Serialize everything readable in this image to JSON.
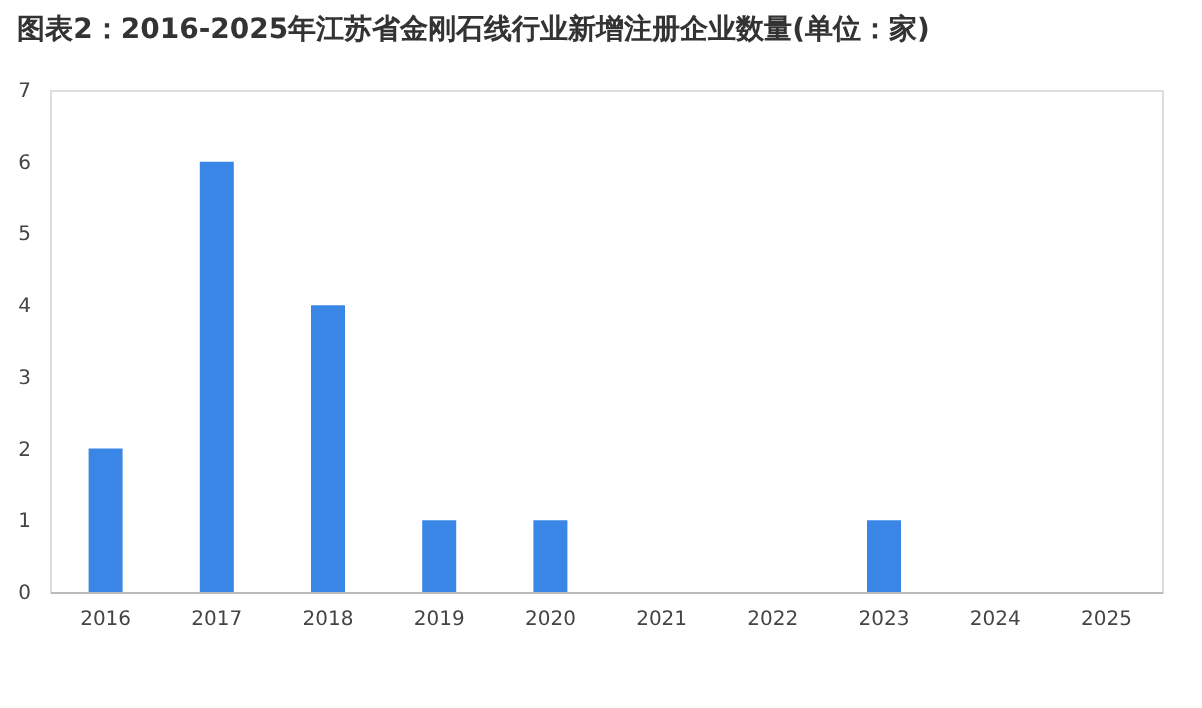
{
  "chart_data": {
    "type": "bar",
    "title": "图表2：2016-2025年江苏省金刚石线行业新增注册企业数量(单位：家)",
    "categories": [
      "2016",
      "2017",
      "2018",
      "2019",
      "2020",
      "2021",
      "2022",
      "2023",
      "2024",
      "2025"
    ],
    "values": [
      2,
      6,
      4,
      1,
      1,
      0,
      0,
      1,
      0,
      0
    ],
    "color": "#3a86e6",
    "ylim": [
      0,
      7
    ],
    "yticks": [
      0,
      1,
      2,
      3,
      4,
      5,
      6,
      7
    ],
    "grid": false
  }
}
